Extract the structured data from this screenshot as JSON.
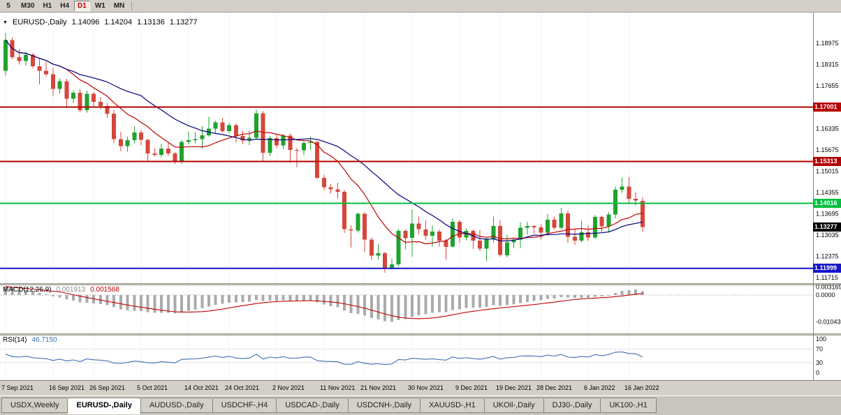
{
  "toolbar": {
    "timeframes": [
      {
        "label": "5",
        "active": false
      },
      {
        "label": "M30",
        "active": false
      },
      {
        "label": "H1",
        "active": false
      },
      {
        "label": "H4",
        "active": false
      },
      {
        "label": "D1",
        "active": true
      },
      {
        "label": "W1",
        "active": false
      },
      {
        "label": "MN",
        "active": false
      }
    ]
  },
  "info": {
    "triangle": "▼",
    "symbol": "EURUSD-,Daily",
    "open": "1.14096",
    "high": "1.14204",
    "low": "1.13136",
    "close": "1.13277"
  },
  "chart_data": {
    "type": "candlestick",
    "symbol": "EURUSD-",
    "timeframe": "Daily",
    "style": {
      "bull": "#1EA32D",
      "bear": "#D5473B",
      "grid": "#dcdcdc"
    },
    "price_axis": {
      "min": 1.1154,
      "max": 1.1993,
      "labels": [
        1.18975,
        1.18315,
        1.17655,
        1.16335,
        1.15675,
        1.15015,
        1.14355,
        1.13695,
        1.13035,
        1.12375,
        1.11715
      ]
    },
    "levels": [
      {
        "price": 1.17001,
        "label": "1.17001",
        "color": "#B40000",
        "width": 2
      },
      {
        "price": 1.15313,
        "label": "1.15313",
        "color": "#B40000",
        "width": 2
      },
      {
        "price": 1.14016,
        "label": "1.14016",
        "color": "#00BE3C",
        "width": 2
      },
      {
        "price": 1.11999,
        "label": "1.11999",
        "color": "#1414C8",
        "width": 2
      }
    ],
    "current_price": {
      "value": 1.13277,
      "label": "1.13277",
      "color": "#000000"
    },
    "moving_averages": [
      {
        "name": "ma-fast",
        "period": 10,
        "color": "#C00000"
      },
      {
        "name": "ma-slow",
        "period": 21,
        "color": "#000080"
      }
    ],
    "x_ticks": [
      {
        "index": 0,
        "label": "7 Sep 2021"
      },
      {
        "index": 7,
        "label": "16 Sep 2021"
      },
      {
        "index": 13,
        "label": "26 Sep 2021"
      },
      {
        "index": 20,
        "label": "5 Oct 2021"
      },
      {
        "index": 27,
        "label": "14 Oct 2021"
      },
      {
        "index": 33,
        "label": "24 Oct 2021"
      },
      {
        "index": 40,
        "label": "2 Nov 2021"
      },
      {
        "index": 47,
        "label": "11 Nov 2021"
      },
      {
        "index": 53,
        "label": "21 Nov 2021"
      },
      {
        "index": 60,
        "label": "30 Nov 2021"
      },
      {
        "index": 67,
        "label": "9 Dec 2021"
      },
      {
        "index": 73,
        "label": "19 Dec 2021"
      },
      {
        "index": 79,
        "label": "28 Dec 2021"
      },
      {
        "index": 86,
        "label": "6 Jan 2022"
      },
      {
        "index": 92,
        "label": "16 Jan 2022"
      }
    ],
    "candles": [
      [
        1.1812,
        1.193,
        1.1798,
        1.1908
      ],
      [
        1.1908,
        1.1916,
        1.1848,
        1.1855
      ],
      [
        1.1855,
        1.188,
        1.1832,
        1.1843
      ],
      [
        1.1843,
        1.1871,
        1.1829,
        1.1862
      ],
      [
        1.1862,
        1.1868,
        1.182,
        1.1827
      ],
      [
        1.1827,
        1.1851,
        1.177,
        1.1812
      ],
      [
        1.1812,
        1.1839,
        1.1795,
        1.1802
      ],
      [
        1.1802,
        1.1821,
        1.1735,
        1.1756
      ],
      [
        1.1756,
        1.1789,
        1.1742,
        1.178
      ],
      [
        1.178,
        1.1788,
        1.17,
        1.1726
      ],
      [
        1.1726,
        1.1752,
        1.1712,
        1.1744
      ],
      [
        1.1744,
        1.1756,
        1.1684,
        1.169
      ],
      [
        1.169,
        1.1751,
        1.1683,
        1.1741
      ],
      [
        1.1741,
        1.1747,
        1.1702,
        1.1716
      ],
      [
        1.1716,
        1.1731,
        1.1694,
        1.1703
      ],
      [
        1.1703,
        1.1713,
        1.1667,
        1.1679
      ],
      [
        1.1679,
        1.169,
        1.1589,
        1.16
      ],
      [
        1.16,
        1.1623,
        1.1563,
        1.1579
      ],
      [
        1.1579,
        1.1608,
        1.1562,
        1.1597
      ],
      [
        1.1597,
        1.164,
        1.1588,
        1.1621
      ],
      [
        1.1621,
        1.1629,
        1.1581,
        1.1598
      ],
      [
        1.1598,
        1.1602,
        1.1529,
        1.1556
      ],
      [
        1.1556,
        1.1572,
        1.1546,
        1.1552
      ],
      [
        1.1552,
        1.1586,
        1.1543,
        1.1571
      ],
      [
        1.1571,
        1.159,
        1.1549,
        1.1556
      ],
      [
        1.1556,
        1.1561,
        1.1524,
        1.1531
      ],
      [
        1.1531,
        1.1597,
        1.1525,
        1.1592
      ],
      [
        1.1592,
        1.1624,
        1.1584,
        1.1597
      ],
      [
        1.1597,
        1.1622,
        1.1588,
        1.1601
      ],
      [
        1.1601,
        1.164,
        1.1571,
        1.1612
      ],
      [
        1.1612,
        1.167,
        1.1608,
        1.1633
      ],
      [
        1.1633,
        1.1658,
        1.1617,
        1.1652
      ],
      [
        1.1652,
        1.1667,
        1.1621,
        1.1625
      ],
      [
        1.1625,
        1.1651,
        1.1619,
        1.1644
      ],
      [
        1.1644,
        1.1649,
        1.159,
        1.161
      ],
      [
        1.161,
        1.1626,
        1.1584,
        1.1596
      ],
      [
        1.1596,
        1.1626,
        1.1582,
        1.1605
      ],
      [
        1.1605,
        1.1692,
        1.1599,
        1.1681
      ],
      [
        1.1681,
        1.1687,
        1.1534,
        1.1558
      ],
      [
        1.1558,
        1.161,
        1.1549,
        1.1604
      ],
      [
        1.1604,
        1.1615,
        1.1574,
        1.1581
      ],
      [
        1.1581,
        1.1617,
        1.157,
        1.1611
      ],
      [
        1.1611,
        1.1618,
        1.1527,
        1.1567
      ],
      [
        1.1567,
        1.1574,
        1.1513,
        1.1566
      ],
      [
        1.1566,
        1.1596,
        1.1551,
        1.1589
      ],
      [
        1.1589,
        1.1609,
        1.1567,
        1.1592
      ],
      [
        1.1592,
        1.1596,
        1.1476,
        1.148
      ],
      [
        1.148,
        1.149,
        1.1443,
        1.1451
      ],
      [
        1.1451,
        1.1462,
        1.1432,
        1.1445
      ],
      [
        1.1445,
        1.1465,
        1.1417,
        1.1437
      ],
      [
        1.1437,
        1.1443,
        1.131,
        1.1321
      ],
      [
        1.1321,
        1.1333,
        1.1264,
        1.1317
      ],
      [
        1.1317,
        1.1374,
        1.1311,
        1.1369
      ],
      [
        1.1369,
        1.1375,
        1.125,
        1.1289
      ],
      [
        1.1289,
        1.1296,
        1.1226,
        1.1239
      ],
      [
        1.1239,
        1.1275,
        1.1227,
        1.1247
      ],
      [
        1.1247,
        1.1251,
        1.1186,
        1.1201
      ],
      [
        1.1201,
        1.123,
        1.1196,
        1.1212
      ],
      [
        1.1212,
        1.1323,
        1.1206,
        1.1316
      ],
      [
        1.1316,
        1.1322,
        1.1259,
        1.1294
      ],
      [
        1.1294,
        1.1383,
        1.1236,
        1.1339
      ],
      [
        1.1339,
        1.1361,
        1.1305,
        1.1321
      ],
      [
        1.1321,
        1.1349,
        1.1289,
        1.1301
      ],
      [
        1.1301,
        1.1334,
        1.1267,
        1.1314
      ],
      [
        1.1314,
        1.1321,
        1.1267,
        1.1286
      ],
      [
        1.1286,
        1.1291,
        1.1228,
        1.1267
      ],
      [
        1.1267,
        1.1355,
        1.1264,
        1.1344
      ],
      [
        1.1344,
        1.1351,
        1.1279,
        1.1296
      ],
      [
        1.1296,
        1.1324,
        1.1287,
        1.1316
      ],
      [
        1.1316,
        1.1321,
        1.126,
        1.1286
      ],
      [
        1.1286,
        1.1319,
        1.1254,
        1.1261
      ],
      [
        1.1261,
        1.1298,
        1.1222,
        1.1291
      ],
      [
        1.1291,
        1.1361,
        1.1281,
        1.1331
      ],
      [
        1.1331,
        1.1349,
        1.1236,
        1.1241
      ],
      [
        1.1241,
        1.1304,
        1.1234,
        1.1281
      ],
      [
        1.1281,
        1.1293,
        1.1262,
        1.1289
      ],
      [
        1.1289,
        1.1342,
        1.1263,
        1.1326
      ],
      [
        1.1326,
        1.1344,
        1.1304,
        1.1331
      ],
      [
        1.1331,
        1.1334,
        1.1306,
        1.1327
      ],
      [
        1.1327,
        1.1336,
        1.1289,
        1.1311
      ],
      [
        1.1311,
        1.1369,
        1.1301,
        1.1351
      ],
      [
        1.1351,
        1.1361,
        1.1321,
        1.1326
      ],
      [
        1.1326,
        1.1387,
        1.1321,
        1.137
      ],
      [
        1.137,
        1.138,
        1.1279,
        1.1298
      ],
      [
        1.1298,
        1.1324,
        1.1272,
        1.1286
      ],
      [
        1.1286,
        1.1347,
        1.128,
        1.1312
      ],
      [
        1.1312,
        1.1333,
        1.1285,
        1.1296
      ],
      [
        1.1296,
        1.1365,
        1.1291,
        1.1359
      ],
      [
        1.1359,
        1.1364,
        1.1313,
        1.133
      ],
      [
        1.133,
        1.1375,
        1.1314,
        1.1367
      ],
      [
        1.1367,
        1.1453,
        1.1355,
        1.1444
      ],
      [
        1.1444,
        1.1482,
        1.1434,
        1.1453
      ],
      [
        1.1453,
        1.1483,
        1.1398,
        1.1416
      ],
      [
        1.1416,
        1.1436,
        1.1395,
        1.141
      ],
      [
        1.14096,
        1.14204,
        1.13136,
        1.13277
      ]
    ],
    "macd": {
      "label": "MACD(12,26,9)",
      "fast": 12,
      "slow": 26,
      "signal": 9,
      "value_main": "0.001913",
      "value_signal": "0.001568",
      "histogram_color": "#ABABAB",
      "signal_color": "#C00000",
      "axis_labels": [
        {
          "value": 0.003169,
          "label": "0.003169"
        },
        {
          "value": 0,
          "label": "0.0000"
        },
        {
          "value": -0.01043,
          "label": "-0.010430"
        }
      ]
    },
    "rsi": {
      "label": "RSI(14)",
      "period": 14,
      "value": "46.7150",
      "color": "#3E6FB0",
      "levels": [
        70,
        30
      ],
      "axis_labels": [
        100,
        70,
        30,
        0
      ]
    }
  },
  "tabs": {
    "items": [
      {
        "label": "USDX,Weekly",
        "active": false
      },
      {
        "label": "EURUSD-,Daily",
        "active": true
      },
      {
        "label": "AUDUSD-,Daily",
        "active": false
      },
      {
        "label": "USDCHF-,H4",
        "active": false
      },
      {
        "label": "USDCAD-,Daily",
        "active": false
      },
      {
        "label": "USDCNH-,Daily",
        "active": false
      },
      {
        "label": "XAUUSD-,H1",
        "active": false
      },
      {
        "label": "UKOil-,Daily",
        "active": false
      },
      {
        "label": "DJ30-,Daily",
        "active": false
      },
      {
        "label": "UK100-,H1",
        "active": false
      }
    ]
  }
}
